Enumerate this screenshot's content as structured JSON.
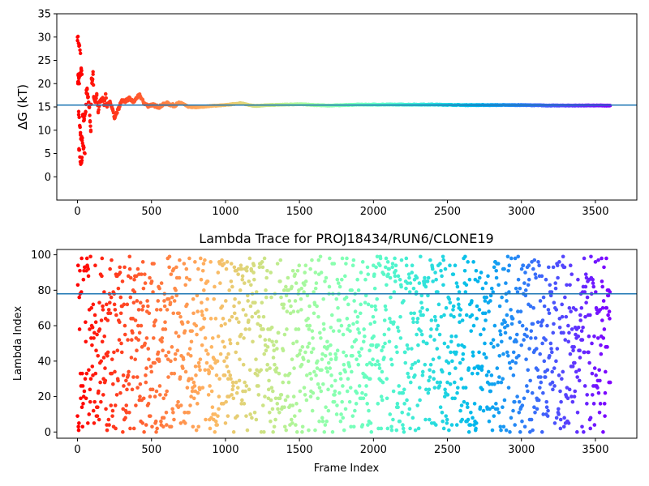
{
  "chart_data": [
    {
      "type": "scatter",
      "title": "",
      "xlabel": "",
      "ylabel": "ΔG (kT)",
      "xlim": [
        -140,
        3780
      ],
      "ylim": [
        -5,
        35
      ],
      "xticks": [
        "0",
        "500",
        "1000",
        "1500",
        "2000",
        "2500",
        "3000",
        "3500"
      ],
      "yticks": [
        "0",
        "5",
        "10",
        "15",
        "20",
        "25",
        "30",
        "35"
      ],
      "reference_line": {
        "y": 15.4,
        "color": "#1f77b4"
      },
      "colormap": "rainbow",
      "series": [
        {
          "points": [
            [
              0,
              30
            ],
            [
              10,
              28.5
            ],
            [
              20,
              26.5
            ],
            [
              5,
              22
            ],
            [
              12,
              20
            ],
            [
              3,
              20
            ],
            [
              25,
              23
            ],
            [
              30,
              22
            ],
            [
              8,
              14
            ],
            [
              15,
              11
            ],
            [
              20,
              9
            ],
            [
              28,
              8
            ],
            [
              40,
              6
            ],
            [
              50,
              5
            ],
            [
              10,
              6
            ],
            [
              22,
              3
            ],
            [
              30,
              3.5
            ],
            [
              35,
              13
            ],
            [
              45,
              12.5
            ],
            [
              55,
              14
            ],
            [
              60,
              18
            ],
            [
              65,
              19
            ],
            [
              70,
              17
            ],
            [
              75,
              16
            ],
            [
              80,
              15
            ],
            [
              85,
              12
            ],
            [
              90,
              10
            ],
            [
              95,
              21
            ],
            [
              100,
              20
            ],
            [
              105,
              22
            ],
            [
              110,
              17
            ],
            [
              120,
              16
            ],
            [
              130,
              17.5
            ],
            [
              140,
              14
            ],
            [
              150,
              16
            ],
            [
              160,
              16.5
            ],
            [
              170,
              17
            ],
            [
              180,
              15.5
            ],
            [
              190,
              17.8
            ],
            [
              200,
              15
            ],
            [
              220,
              16.2
            ],
            [
              240,
              14.2
            ],
            [
              250,
              12.5
            ],
            [
              260,
              13.5
            ],
            [
              280,
              14.8
            ],
            [
              300,
              16.5
            ],
            [
              320,
              16.2
            ],
            [
              350,
              16.8
            ],
            [
              380,
              16
            ],
            [
              400,
              17
            ],
            [
              420,
              17.5
            ],
            [
              450,
              15.8
            ],
            [
              480,
              15.2
            ],
            [
              500,
              15.5
            ],
            [
              550,
              15
            ],
            [
              600,
              15.8
            ],
            [
              650,
              15.3
            ],
            [
              700,
              15.9
            ],
            [
              750,
              15
            ],
            [
              800,
              14.9
            ],
            [
              900,
              15.2
            ],
            [
              1000,
              15.4
            ],
            [
              1100,
              15.8
            ],
            [
              1200,
              15.2
            ],
            [
              1300,
              15.4
            ],
            [
              1400,
              15.5
            ],
            [
              1500,
              15.6
            ],
            [
              1600,
              15.4
            ],
            [
              1700,
              15.3
            ],
            [
              1800,
              15.4
            ],
            [
              1900,
              15.5
            ],
            [
              2000,
              15.5
            ],
            [
              2200,
              15.5
            ],
            [
              2400,
              15.5
            ],
            [
              2600,
              15.4
            ],
            [
              2800,
              15.4
            ],
            [
              3000,
              15.4
            ],
            [
              3200,
              15.3
            ],
            [
              3400,
              15.3
            ],
            [
              3600,
              15.3
            ]
          ]
        }
      ]
    },
    {
      "type": "scatter",
      "title": "Lambda Trace for PROJ18434/RUN6/CLONE19",
      "xlabel": "Frame Index",
      "ylabel": "Lambda Index",
      "xlim": [
        -140,
        3780
      ],
      "ylim": [
        -3.5,
        103
      ],
      "xticks": [
        "0",
        "500",
        "1000",
        "1500",
        "2000",
        "2500",
        "3000",
        "3500"
      ],
      "yticks": [
        "0",
        "20",
        "40",
        "60",
        "80",
        "100"
      ],
      "reference_line": {
        "y": 78,
        "color": "#1f77b4"
      },
      "colormap": "rainbow",
      "frames": [
        0,
        3600
      ],
      "lambda_range": [
        0,
        99
      ]
    }
  ]
}
